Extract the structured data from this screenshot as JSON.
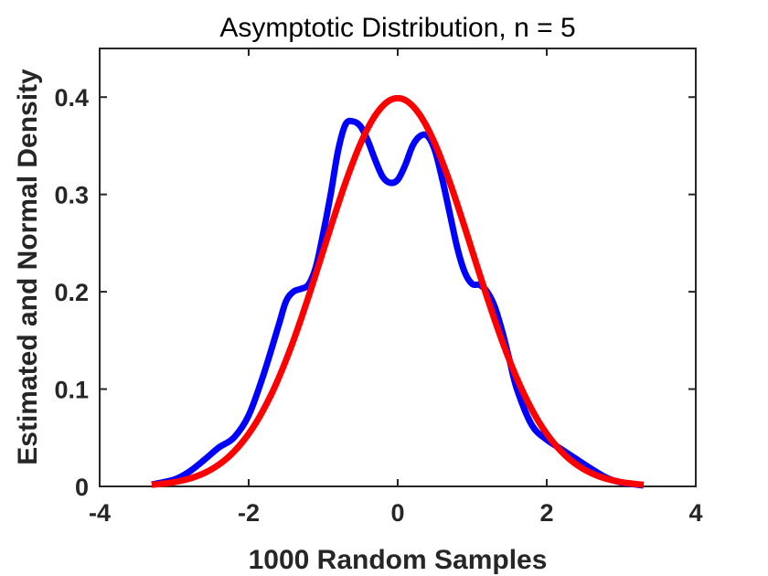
{
  "chart_data": {
    "type": "line",
    "title": "Asymptotic Distribution, n = 5",
    "xlabel": "1000 Random Samples",
    "ylabel": "Estimated and Normal Density",
    "xlim": [
      -4,
      4
    ],
    "ylim": [
      0,
      0.45
    ],
    "xticks": [
      "-4",
      "-2",
      "0",
      "2",
      "4"
    ],
    "yticks": [
      "0",
      "0.1",
      "0.2",
      "0.3",
      "0.4"
    ],
    "grid": false,
    "legend": "none",
    "series": [
      {
        "color": "#0000ff",
        "x": [
          -3.3,
          -3.0,
          -2.8,
          -2.6,
          -2.4,
          -2.2,
          -2.0,
          -1.8,
          -1.6,
          -1.5,
          -1.4,
          -1.3,
          -1.2,
          -1.1,
          -1.0,
          -0.9,
          -0.8,
          -0.7,
          -0.6,
          -0.5,
          -0.4,
          -0.3,
          -0.2,
          -0.1,
          0.0,
          0.1,
          0.2,
          0.3,
          0.4,
          0.5,
          0.6,
          0.7,
          0.8,
          0.9,
          1.0,
          1.1,
          1.2,
          1.3,
          1.4,
          1.5,
          1.6,
          1.8,
          2.0,
          2.2,
          2.4,
          2.6,
          2.8,
          3.0,
          3.3
        ],
        "y": [
          0.002,
          0.007,
          0.015,
          0.027,
          0.04,
          0.05,
          0.073,
          0.115,
          0.165,
          0.19,
          0.2,
          0.203,
          0.207,
          0.225,
          0.26,
          0.3,
          0.345,
          0.372,
          0.375,
          0.37,
          0.355,
          0.335,
          0.318,
          0.312,
          0.315,
          0.33,
          0.35,
          0.36,
          0.36,
          0.345,
          0.315,
          0.28,
          0.245,
          0.22,
          0.208,
          0.207,
          0.2,
          0.185,
          0.16,
          0.13,
          0.1,
          0.063,
          0.048,
          0.038,
          0.028,
          0.018,
          0.009,
          0.004,
          0.001
        ]
      },
      {
        "color": "#ff0000",
        "x": [
          -3.3,
          -3.2,
          -3.1,
          -3.0,
          -2.9,
          -2.8,
          -2.7,
          -2.6,
          -2.5,
          -2.4,
          -2.3,
          -2.2,
          -2.1,
          -2.0,
          -1.9,
          -1.8,
          -1.7,
          -1.6,
          -1.5,
          -1.4,
          -1.3,
          -1.2,
          -1.1,
          -1.0,
          -0.9,
          -0.8,
          -0.7,
          -0.6,
          -0.5,
          -0.4,
          -0.3,
          -0.2,
          -0.1,
          0.0,
          0.1,
          0.2,
          0.3,
          0.4,
          0.5,
          0.6,
          0.7,
          0.8,
          0.9,
          1.0,
          1.1,
          1.2,
          1.3,
          1.4,
          1.5,
          1.6,
          1.7,
          1.8,
          1.9,
          2.0,
          2.1,
          2.2,
          2.3,
          2.4,
          2.5,
          2.6,
          2.7,
          2.8,
          2.9,
          3.0,
          3.1,
          3.2,
          3.3
        ],
        "y": [
          0.0017,
          0.0024,
          0.0033,
          0.0044,
          0.006,
          0.0079,
          0.0104,
          0.0136,
          0.0175,
          0.0224,
          0.0283,
          0.0355,
          0.044,
          0.054,
          0.0656,
          0.079,
          0.094,
          0.1109,
          0.1295,
          0.1497,
          0.1714,
          0.1942,
          0.2179,
          0.242,
          0.2661,
          0.2897,
          0.3123,
          0.3332,
          0.3521,
          0.3683,
          0.3814,
          0.391,
          0.397,
          0.3989,
          0.397,
          0.391,
          0.3814,
          0.3683,
          0.3521,
          0.3332,
          0.3123,
          0.2897,
          0.2661,
          0.242,
          0.2179,
          0.1942,
          0.1714,
          0.1497,
          0.1295,
          0.1109,
          0.094,
          0.079,
          0.0656,
          0.054,
          0.044,
          0.0355,
          0.0283,
          0.0224,
          0.0175,
          0.0136,
          0.0104,
          0.0079,
          0.006,
          0.0044,
          0.0033,
          0.0024,
          0.0017
        ]
      }
    ]
  }
}
